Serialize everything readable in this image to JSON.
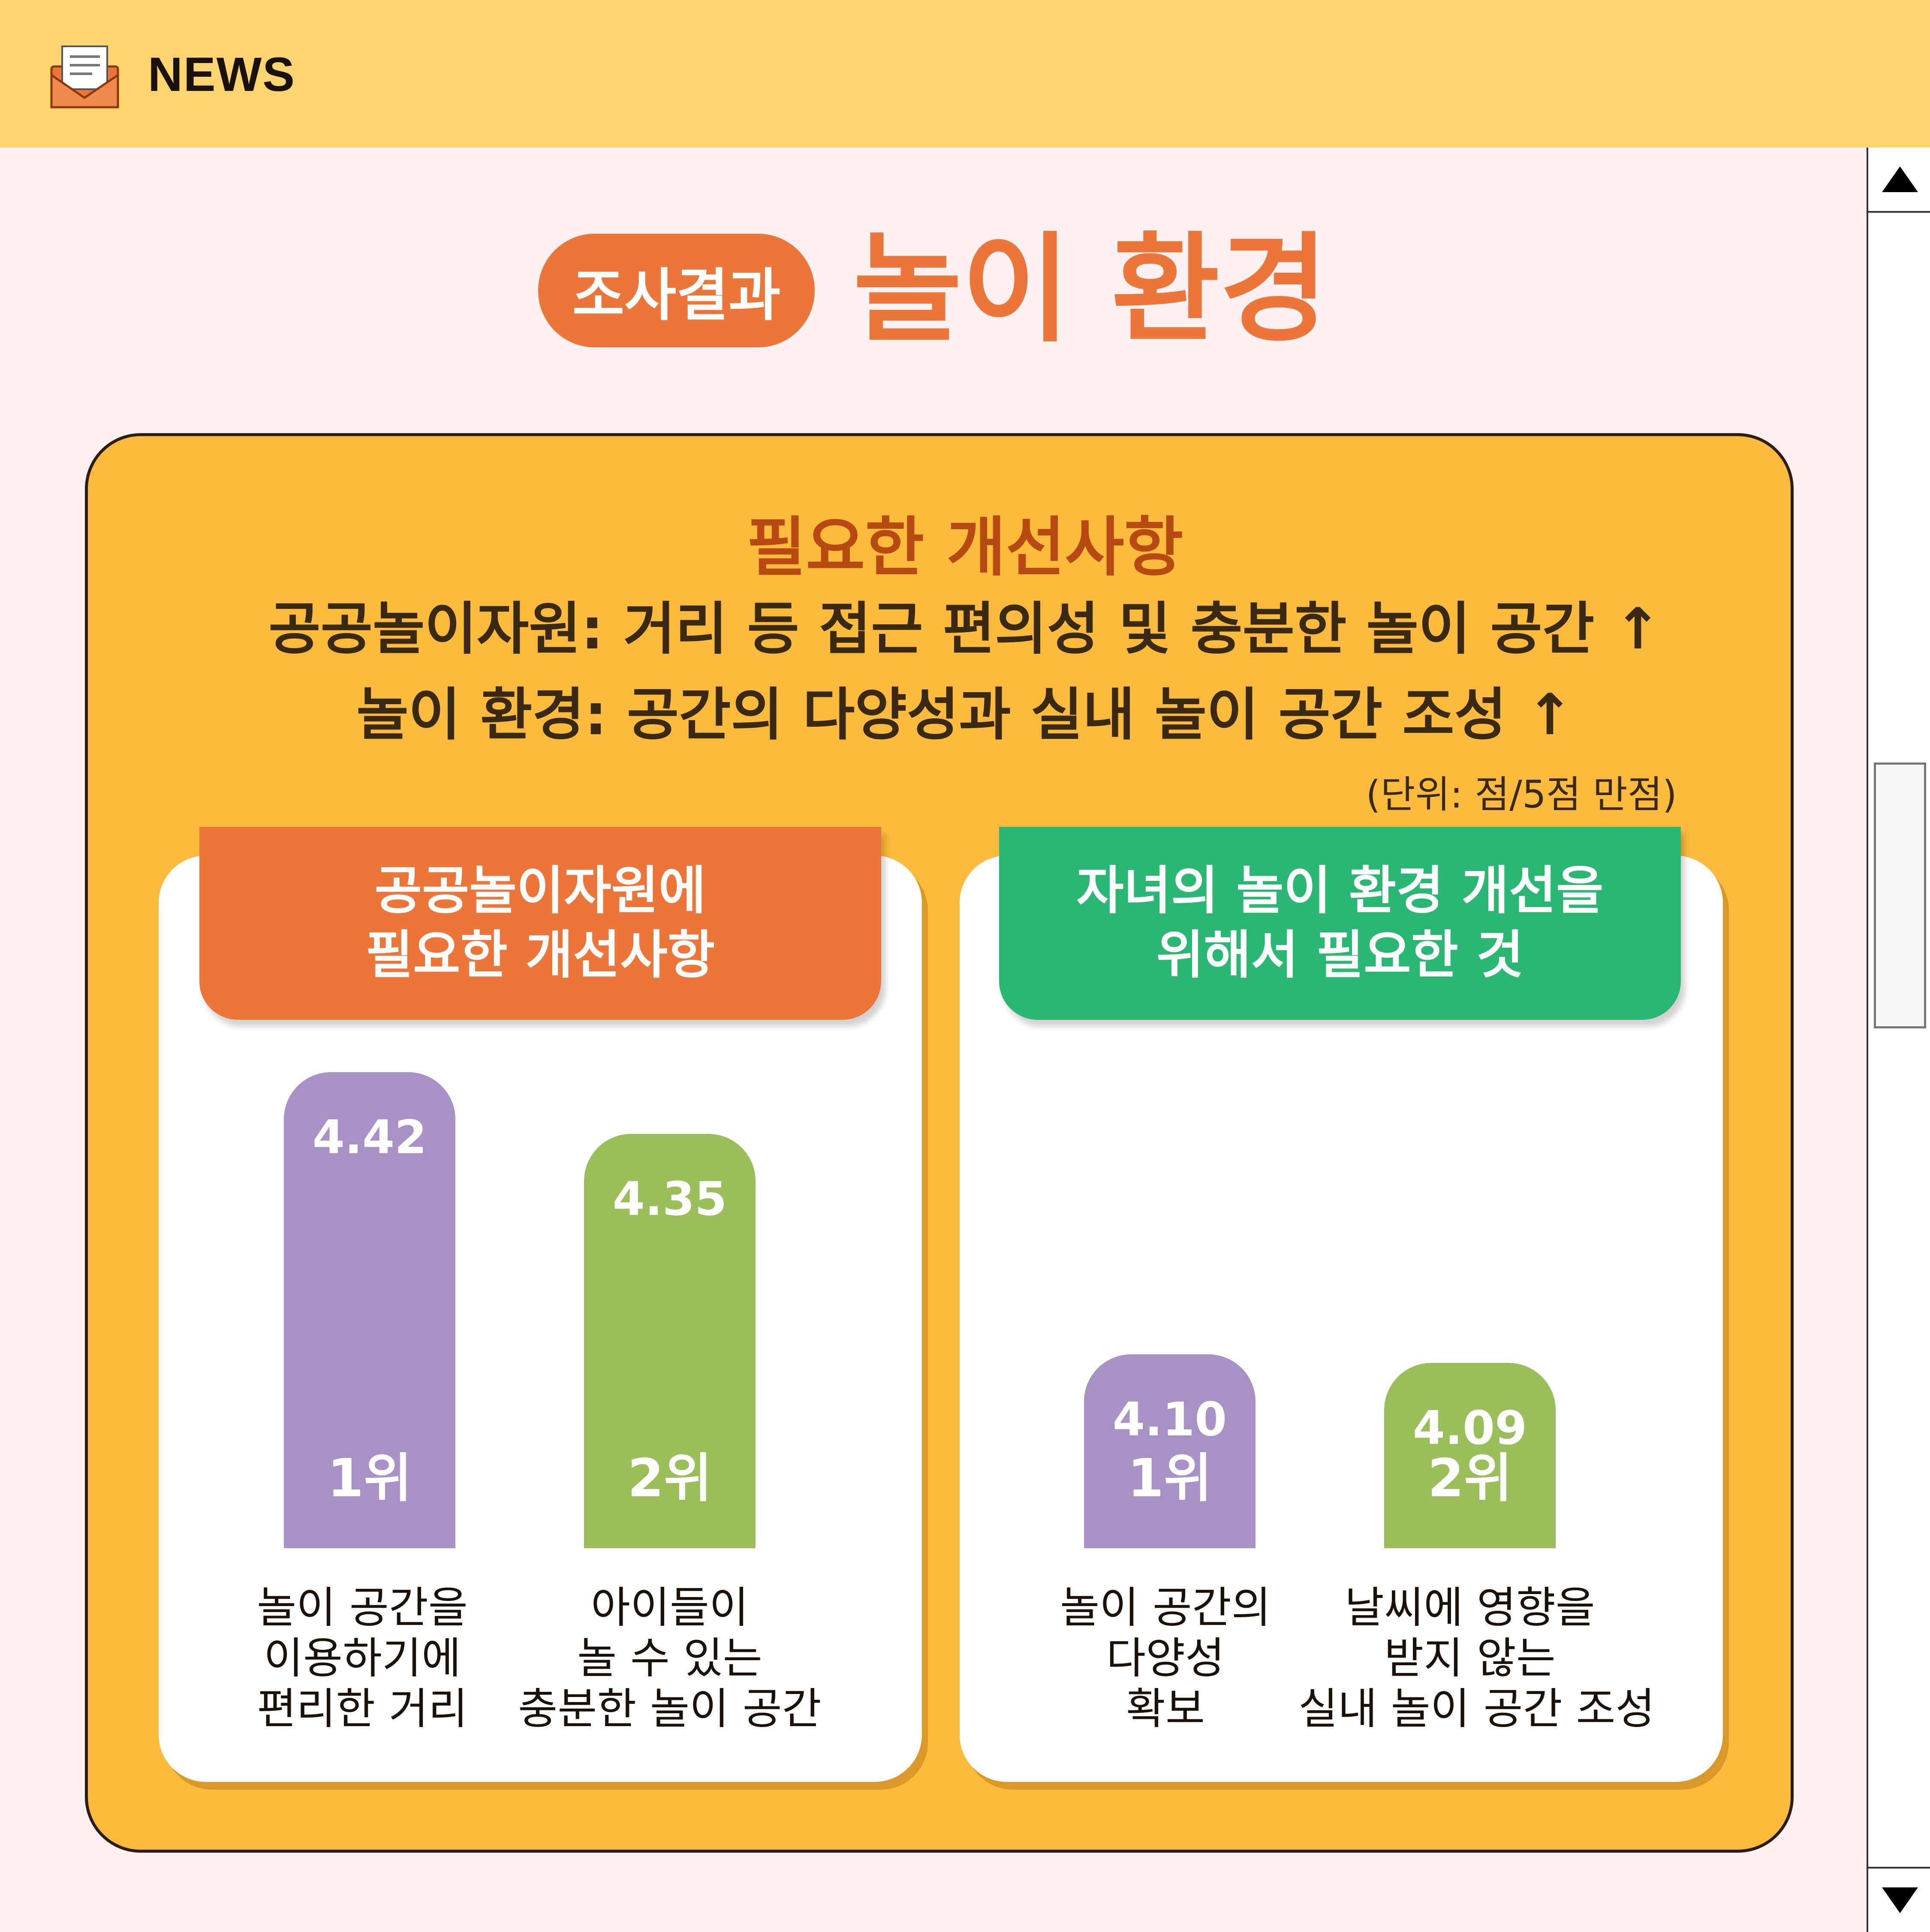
{
  "header": {
    "brand": "NEWS",
    "icon": "envelope-icon"
  },
  "scrollbar": {
    "up_icon": "triangle-up-icon",
    "down_icon": "triangle-down-icon"
  },
  "tag": "조사결과",
  "page_title": "놀이 환경",
  "headline": {
    "line1": "필요한 개선사항",
    "line2": "공공놀이자원: 거리 등 접근 편의성 및 충분한 놀이 공간 ↑",
    "line3": "놀이 환경: 공간의 다양성과 실내 놀이 공간 조성 ↑"
  },
  "unit": "(단위: 점/5점 만점)",
  "colors": {
    "orange": "#ec7539",
    "green_header": "#2ab774",
    "purple_bar": "#a692c5",
    "green_bar": "#9bbe5a",
    "panel": "#fdbb3d"
  },
  "chart_data": [
    {
      "type": "bar",
      "title_lines": [
        "공공놀이자원에",
        "필요한 개선사항"
      ],
      "ylim": [
        0,
        5
      ],
      "categories": [
        [
          "놀이 공간을",
          "이용하기에",
          "편리한 거리"
        ],
        [
          "아이들이",
          "놀 수 있는",
          "충분한 놀이 공간"
        ]
      ],
      "ranks": [
        "1위",
        "2위"
      ],
      "values": [
        4.42,
        4.35
      ],
      "value_labels": [
        "4.42",
        "4.35"
      ]
    },
    {
      "type": "bar",
      "title_lines": [
        "자녀의 놀이 환경 개선을",
        "위해서 필요한 것"
      ],
      "ylim": [
        0,
        5
      ],
      "categories": [
        [
          "놀이 공간의",
          "다양성",
          "확보"
        ],
        [
          "날씨에 영향을",
          "받지 않는",
          "실내 놀이 공간 조성"
        ]
      ],
      "ranks": [
        "1위",
        "2위"
      ],
      "values": [
        4.1,
        4.09
      ],
      "value_labels": [
        "4.10",
        "4.09"
      ]
    }
  ]
}
